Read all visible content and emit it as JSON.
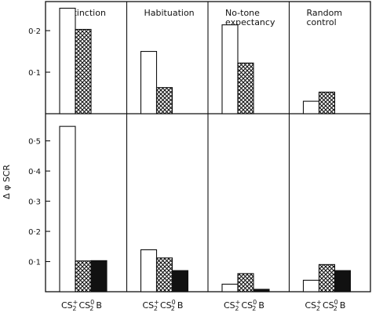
{
  "chart_data": {
    "type": "bar",
    "ylabel": "Δ φ SCR",
    "conditions": [
      "Extinction",
      "Habituation",
      "No-tone\nexpectancy",
      "Random\ncontrol"
    ],
    "x_tick_bottom": {
      "cs": "CS",
      "sup": "+",
      "sub": "2",
      "cs0": "CS",
      "sup0": "0",
      "sub0": "2",
      "b": "B"
    },
    "series": [
      {
        "key": "cs_plus",
        "fill": "open"
      },
      {
        "key": "cs_zero",
        "fill": "crosshatch"
      },
      {
        "key": "b",
        "fill": "solid"
      }
    ],
    "panels": [
      {
        "ylim": [
          0,
          0.27
        ],
        "yticks": [
          {
            "v": 0.1,
            "label": "0·1"
          },
          {
            "v": 0.2,
            "label": "0·2"
          }
        ],
        "values": [
          {
            "cs_plus": 0.254,
            "cs_zero": 0.203
          },
          {
            "cs_plus": 0.15,
            "cs_zero": 0.063
          },
          {
            "cs_plus": 0.214,
            "cs_zero": 0.122
          },
          {
            "cs_plus": 0.03,
            "cs_zero": 0.052
          }
        ]
      },
      {
        "ylim": [
          0,
          0.59
        ],
        "yticks": [
          {
            "v": 0.1,
            "label": "0·1"
          },
          {
            "v": 0.2,
            "label": "0·2"
          },
          {
            "v": 0.3,
            "label": "0·3"
          },
          {
            "v": 0.4,
            "label": "0·4"
          },
          {
            "v": 0.5,
            "label": "0·5"
          }
        ],
        "values": [
          {
            "cs_plus": 0.548,
            "cs_zero": 0.102,
            "b": 0.103
          },
          {
            "cs_plus": 0.139,
            "cs_zero": 0.112,
            "b": 0.07
          },
          {
            "cs_plus": 0.025,
            "cs_zero": 0.06,
            "b": 0.008
          },
          {
            "cs_plus": 0.038,
            "cs_zero": 0.09,
            "b": 0.07
          }
        ]
      }
    ]
  }
}
